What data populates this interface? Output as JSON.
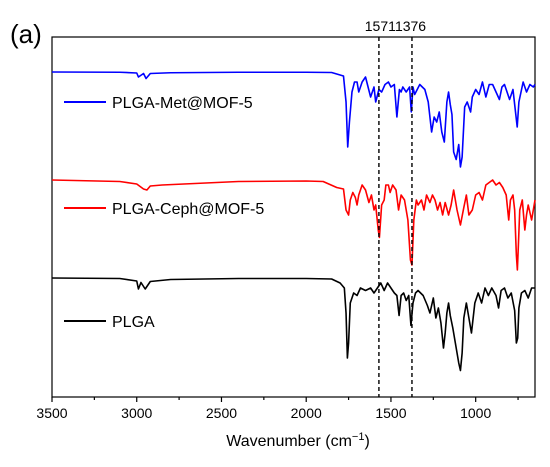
{
  "panel_label": "(a)",
  "chart_data": {
    "type": "line",
    "title": "",
    "xlabel_main": "Wavenumber (cm",
    "xlabel_sup": "−1",
    "xlabel_close": ")",
    "ylabel": "",
    "xlim": [
      3500,
      650
    ],
    "x_reversed": true,
    "x_ticks": [
      3500,
      3000,
      2500,
      2000,
      1500,
      1000
    ],
    "grid": false,
    "legend_placement": "left, beside each trace",
    "annotations": [
      {
        "label": "1571",
        "x": 1571
      },
      {
        "label": "1376",
        "x": 1376
      }
    ],
    "series": [
      {
        "name": "PLGA-Met@MOF-5",
        "color": "#0000ff",
        "points": [
          [
            3500,
            0.0
          ],
          [
            3100,
            0.05
          ],
          [
            3000,
            0.2
          ],
          [
            2990,
            1.0
          ],
          [
            2960,
            0.3
          ],
          [
            2945,
            1.3
          ],
          [
            2920,
            0.3
          ],
          [
            2800,
            0.15
          ],
          [
            2400,
            0.05
          ],
          [
            2000,
            0.05
          ],
          [
            1850,
            0.1
          ],
          [
            1800,
            0.6
          ],
          [
            1780,
            0.8
          ],
          [
            1765,
            6.0
          ],
          [
            1755,
            15.0
          ],
          [
            1745,
            10.0
          ],
          [
            1730,
            4.0
          ],
          [
            1715,
            2.0
          ],
          [
            1700,
            2.0
          ],
          [
            1690,
            4.0
          ],
          [
            1670,
            2.0
          ],
          [
            1650,
            1.0
          ],
          [
            1620,
            5.0
          ],
          [
            1600,
            3.0
          ],
          [
            1590,
            6.0
          ],
          [
            1571,
            3.5
          ],
          [
            1555,
            4.0
          ],
          [
            1535,
            2.5
          ],
          [
            1515,
            2.0
          ],
          [
            1500,
            3.0
          ],
          [
            1480,
            2.5
          ],
          [
            1465,
            9.0
          ],
          [
            1450,
            3.5
          ],
          [
            1440,
            4.0
          ],
          [
            1430,
            3.0
          ],
          [
            1410,
            4.0
          ],
          [
            1390,
            3.0
          ],
          [
            1380,
            8.0
          ],
          [
            1370,
            3.0
          ],
          [
            1360,
            4.5
          ],
          [
            1330,
            2.5
          ],
          [
            1300,
            3.5
          ],
          [
            1280,
            6.0
          ],
          [
            1260,
            12.0
          ],
          [
            1245,
            9.0
          ],
          [
            1230,
            10.0
          ],
          [
            1215,
            8.0
          ],
          [
            1200,
            12.0
          ],
          [
            1185,
            14.0
          ],
          [
            1170,
            6.0
          ],
          [
            1160,
            4.0
          ],
          [
            1150,
            6.5
          ],
          [
            1140,
            8.5
          ],
          [
            1130,
            16.0
          ],
          [
            1115,
            17.5
          ],
          [
            1100,
            14.5
          ],
          [
            1090,
            19.0
          ],
          [
            1080,
            17.0
          ],
          [
            1065,
            7.0
          ],
          [
            1050,
            6.0
          ],
          [
            1030,
            8.0
          ],
          [
            1020,
            5.0
          ],
          [
            1000,
            3.5
          ],
          [
            980,
            4.5
          ],
          [
            960,
            2.0
          ],
          [
            940,
            5.0
          ],
          [
            920,
            2.5
          ],
          [
            900,
            2.5
          ],
          [
            880,
            4.0
          ],
          [
            860,
            5.5
          ],
          [
            845,
            3.0
          ],
          [
            830,
            2.5
          ],
          [
            800,
            5.5
          ],
          [
            780,
            3.5
          ],
          [
            765,
            8.0
          ],
          [
            755,
            11.0
          ],
          [
            745,
            6.0
          ],
          [
            720,
            2.0
          ],
          [
            700,
            4.0
          ],
          [
            680,
            2.5
          ],
          [
            660,
            3.0
          ],
          [
            650,
            2.5
          ]
        ]
      },
      {
        "name": "PLGA-Ceph@MOF-5",
        "color": "#ff0000",
        "points": [
          [
            3500,
            0.0
          ],
          [
            3100,
            0.3
          ],
          [
            3000,
            0.8
          ],
          [
            2960,
            1.8
          ],
          [
            2940,
            2.0
          ],
          [
            2920,
            1.2
          ],
          [
            2850,
            1.0
          ],
          [
            2400,
            0.3
          ],
          [
            2000,
            0.2
          ],
          [
            1900,
            0.3
          ],
          [
            1820,
            1.5
          ],
          [
            1780,
            1.8
          ],
          [
            1765,
            6.0
          ],
          [
            1750,
            7.0
          ],
          [
            1740,
            4.0
          ],
          [
            1725,
            2.5
          ],
          [
            1710,
            3.5
          ],
          [
            1700,
            5.0
          ],
          [
            1690,
            3.0
          ],
          [
            1670,
            1.0
          ],
          [
            1650,
            2.0
          ],
          [
            1630,
            4.5
          ],
          [
            1615,
            3.0
          ],
          [
            1600,
            6.0
          ],
          [
            1590,
            5.0
          ],
          [
            1575,
            10.0
          ],
          [
            1568,
            11.5
          ],
          [
            1555,
            5.0
          ],
          [
            1540,
            4.0
          ],
          [
            1530,
            1.0
          ],
          [
            1515,
            1.0
          ],
          [
            1505,
            2.5
          ],
          [
            1490,
            1.0
          ],
          [
            1470,
            2.0
          ],
          [
            1455,
            6.0
          ],
          [
            1440,
            3.0
          ],
          [
            1420,
            4.0
          ],
          [
            1400,
            8.0
          ],
          [
            1385,
            16.0
          ],
          [
            1376,
            17.0
          ],
          [
            1365,
            8.0
          ],
          [
            1350,
            4.0
          ],
          [
            1340,
            5.0
          ],
          [
            1320,
            4.0
          ],
          [
            1305,
            6.0
          ],
          [
            1290,
            3.0
          ],
          [
            1270,
            4.5
          ],
          [
            1255,
            3.0
          ],
          [
            1240,
            4.0
          ],
          [
            1225,
            6.0
          ],
          [
            1210,
            4.5
          ],
          [
            1195,
            7.0
          ],
          [
            1180,
            4.5
          ],
          [
            1160,
            7.0
          ],
          [
            1145,
            5.0
          ],
          [
            1130,
            2.0
          ],
          [
            1110,
            6.0
          ],
          [
            1090,
            9.0
          ],
          [
            1070,
            5.5
          ],
          [
            1055,
            3.0
          ],
          [
            1040,
            7.0
          ],
          [
            1020,
            6.0
          ],
          [
            1000,
            3.0
          ],
          [
            980,
            2.5
          ],
          [
            960,
            4.0
          ],
          [
            940,
            1.0
          ],
          [
            920,
            0.5
          ],
          [
            900,
            0.0
          ],
          [
            880,
            1.0
          ],
          [
            860,
            0.5
          ],
          [
            840,
            1.5
          ],
          [
            820,
            3.0
          ],
          [
            805,
            8.0
          ],
          [
            795,
            4.0
          ],
          [
            780,
            3.0
          ],
          [
            770,
            6.0
          ],
          [
            760,
            15.0
          ],
          [
            754,
            18.0
          ],
          [
            748,
            13.0
          ],
          [
            740,
            6.0
          ],
          [
            725,
            4.0
          ],
          [
            710,
            10.0
          ],
          [
            700,
            7.0
          ],
          [
            690,
            5.0
          ],
          [
            670,
            8.0
          ],
          [
            660,
            6.0
          ],
          [
            650,
            4.0
          ]
        ]
      },
      {
        "name": "PLGA",
        "color": "#000000",
        "points": [
          [
            3500,
            0.0
          ],
          [
            3100,
            0.1
          ],
          [
            3000,
            0.6
          ],
          [
            2990,
            2.2
          ],
          [
            2975,
            0.9
          ],
          [
            2950,
            2.2
          ],
          [
            2920,
            0.7
          ],
          [
            2800,
            0.3
          ],
          [
            2400,
            0.1
          ],
          [
            2000,
            0.1
          ],
          [
            1850,
            0.2
          ],
          [
            1800,
            1.0
          ],
          [
            1775,
            2.0
          ],
          [
            1765,
            7.0
          ],
          [
            1757,
            16.0
          ],
          [
            1750,
            13.0
          ],
          [
            1740,
            5.0
          ],
          [
            1720,
            3.0
          ],
          [
            1700,
            3.5
          ],
          [
            1680,
            2.0
          ],
          [
            1650,
            2.5
          ],
          [
            1620,
            2.0
          ],
          [
            1600,
            3.0
          ],
          [
            1580,
            2.0
          ],
          [
            1560,
            1.0
          ],
          [
            1540,
            2.5
          ],
          [
            1520,
            1.0
          ],
          [
            1500,
            2.0
          ],
          [
            1480,
            3.0
          ],
          [
            1465,
            3.5
          ],
          [
            1452,
            7.5
          ],
          [
            1440,
            3.5
          ],
          [
            1425,
            3.0
          ],
          [
            1410,
            4.5
          ],
          [
            1395,
            3.5
          ],
          [
            1382,
            9.5
          ],
          [
            1370,
            5.0
          ],
          [
            1355,
            3.0
          ],
          [
            1340,
            2.5
          ],
          [
            1310,
            3.5
          ],
          [
            1285,
            5.5
          ],
          [
            1270,
            7.0
          ],
          [
            1250,
            4.0
          ],
          [
            1235,
            8.0
          ],
          [
            1220,
            6.0
          ],
          [
            1205,
            9.0
          ],
          [
            1190,
            14.0
          ],
          [
            1180,
            11.0
          ],
          [
            1170,
            7.0
          ],
          [
            1160,
            5.0
          ],
          [
            1150,
            7.5
          ],
          [
            1135,
            10.0
          ],
          [
            1120,
            13.0
          ],
          [
            1100,
            17.0
          ],
          [
            1090,
            18.5
          ],
          [
            1080,
            15.0
          ],
          [
            1070,
            8.0
          ],
          [
            1055,
            5.0
          ],
          [
            1040,
            8.0
          ],
          [
            1025,
            11.0
          ],
          [
            1005,
            5.0
          ],
          [
            985,
            3.0
          ],
          [
            965,
            5.0
          ],
          [
            945,
            2.0
          ],
          [
            925,
            3.5
          ],
          [
            905,
            2.0
          ],
          [
            880,
            3.5
          ],
          [
            865,
            6.0
          ],
          [
            850,
            2.5
          ],
          [
            830,
            2.0
          ],
          [
            810,
            4.0
          ],
          [
            790,
            3.0
          ],
          [
            770,
            6.5
          ],
          [
            760,
            13.0
          ],
          [
            752,
            12.0
          ],
          [
            745,
            6.0
          ],
          [
            730,
            3.0
          ],
          [
            710,
            2.5
          ],
          [
            690,
            4.0
          ],
          [
            670,
            2.0
          ],
          [
            650,
            2.0
          ]
        ]
      }
    ]
  }
}
